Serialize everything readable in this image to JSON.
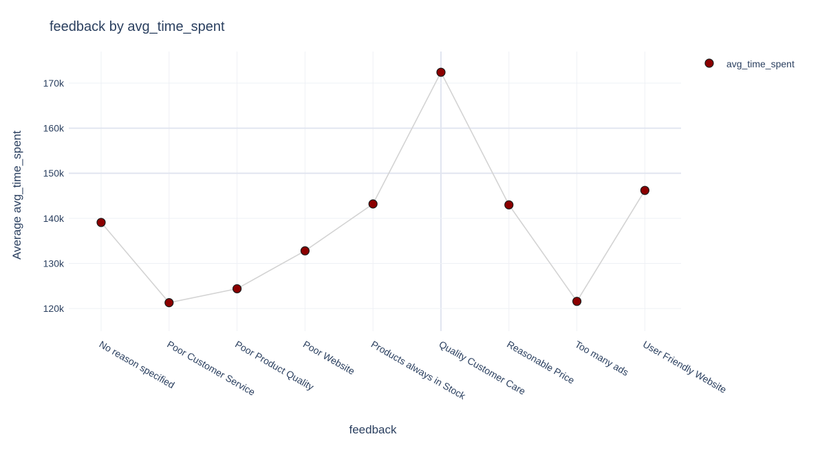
{
  "chart_data": {
    "type": "line",
    "title": "feedback by avg_time_spent",
    "xlabel": "feedback",
    "ylabel": "Average avg_time_spent",
    "categories": [
      "No reason specified",
      "Poor Customer Service",
      "Poor Product Quality",
      "Poor Website",
      "Products always in Stock",
      "Quality Customer Care",
      "Reasonable Price",
      "Too many ads",
      "User Friendly Website"
    ],
    "series": [
      {
        "name": "avg_time_spent",
        "values": [
          139100,
          121300,
          124400,
          132800,
          143200,
          172400,
          143000,
          121600,
          146200
        ],
        "marker_color": "#8b0000",
        "marker_outline": "#1a1a1a",
        "line_color": "#d3d3d3"
      }
    ],
    "ylim": [
      115000,
      177000
    ],
    "yticks": [
      120000,
      130000,
      140000,
      150000,
      160000,
      170000
    ],
    "ytick_labels": [
      "120k",
      "130k",
      "140k",
      "150k",
      "160k",
      "170k"
    ],
    "grid": true,
    "legend_position": "top-right"
  }
}
